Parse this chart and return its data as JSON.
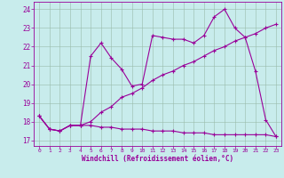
{
  "xlabel": "Windchill (Refroidissement éolien,°C)",
  "background_color": "#c8ecec",
  "line_color": "#990099",
  "grid_color": "#aaccaa",
  "x_ticks": [
    0,
    1,
    2,
    3,
    4,
    5,
    6,
    7,
    8,
    9,
    10,
    11,
    12,
    13,
    14,
    15,
    16,
    17,
    18,
    19,
    20,
    21,
    22,
    23
  ],
  "y_ticks": [
    17,
    18,
    19,
    20,
    21,
    22,
    23,
    24
  ],
  "ylim": [
    16.7,
    24.4
  ],
  "xlim": [
    -0.5,
    23.5
  ],
  "series1_x": [
    0,
    1,
    2,
    3,
    4,
    5,
    6,
    7,
    8,
    9,
    10,
    11,
    12,
    13,
    14,
    15,
    16,
    17,
    18,
    19,
    20,
    21,
    22,
    23
  ],
  "series1_y": [
    18.3,
    17.6,
    17.5,
    17.8,
    17.8,
    21.5,
    22.2,
    21.4,
    20.8,
    19.9,
    20.0,
    22.6,
    22.5,
    22.4,
    22.4,
    22.2,
    22.6,
    23.6,
    24.0,
    23.0,
    22.5,
    20.7,
    18.1,
    17.2
  ],
  "series2_x": [
    0,
    1,
    2,
    3,
    4,
    5,
    6,
    7,
    8,
    9,
    10,
    11,
    12,
    13,
    14,
    15,
    16,
    17,
    18,
    19,
    20,
    21,
    22,
    23
  ],
  "series2_y": [
    18.3,
    17.6,
    17.5,
    17.8,
    17.8,
    18.0,
    18.5,
    18.8,
    19.3,
    19.5,
    19.8,
    20.2,
    20.5,
    20.7,
    21.0,
    21.2,
    21.5,
    21.8,
    22.0,
    22.3,
    22.5,
    22.7,
    23.0,
    23.2
  ],
  "series3_x": [
    0,
    1,
    2,
    3,
    4,
    5,
    6,
    7,
    8,
    9,
    10,
    11,
    12,
    13,
    14,
    15,
    16,
    17,
    18,
    19,
    20,
    21,
    22,
    23
  ],
  "series3_y": [
    18.3,
    17.6,
    17.5,
    17.8,
    17.8,
    17.8,
    17.7,
    17.7,
    17.6,
    17.6,
    17.6,
    17.5,
    17.5,
    17.5,
    17.4,
    17.4,
    17.4,
    17.3,
    17.3,
    17.3,
    17.3,
    17.3,
    17.3,
    17.2
  ]
}
